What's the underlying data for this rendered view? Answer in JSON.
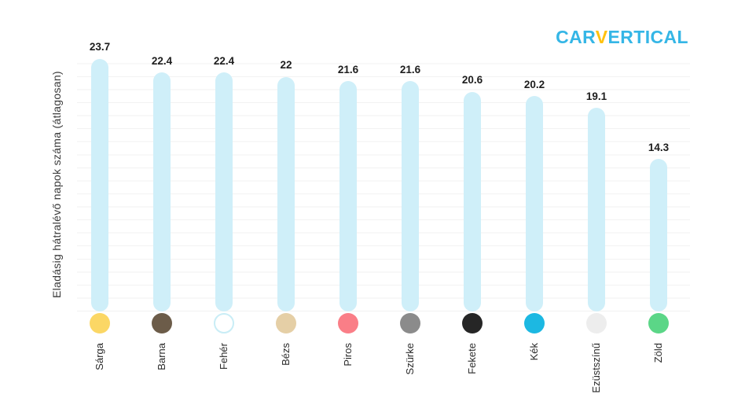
{
  "logo": {
    "part1": "CAR",
    "part2": "V",
    "part3": "ERTICAL",
    "blue": "#35b6e6",
    "yellow": "#ffc20e"
  },
  "chart_data": {
    "type": "bar",
    "title": "",
    "xlabel": "",
    "ylabel": "Eladásig hátralévő napok száma (átlagosan)",
    "categories": [
      "Sárga",
      "Barna",
      "Fehér",
      "Bézs",
      "Piros",
      "Szürke",
      "Fekete",
      "Kék",
      "Ezüstszínű",
      "Zöld"
    ],
    "values": [
      23.7,
      22.4,
      22.4,
      22,
      21.6,
      21.6,
      20.6,
      20.2,
      19.1,
      14.3
    ],
    "value_labels": [
      "23.7",
      "22.4",
      "22.4",
      "22",
      "21.6",
      "21.6",
      "20.6",
      "20.2",
      "19.1",
      "14.3"
    ],
    "bar_color": "#cfeff9",
    "marker_colors": [
      "#fbd765",
      "#6c5c49",
      "#ffffff",
      "#e5cfa6",
      "#fa7e87",
      "#8b8b8b",
      "#262626",
      "#1cb8e2",
      "#ededed",
      "#5bd687"
    ],
    "white_marker_border": "#c9edf6",
    "ylim": [
      0,
      25
    ],
    "grid": true,
    "legend": false,
    "layout_hint": "vertical pill bars, value labels on top, color swatch circle and rotated category label under each bar"
  }
}
